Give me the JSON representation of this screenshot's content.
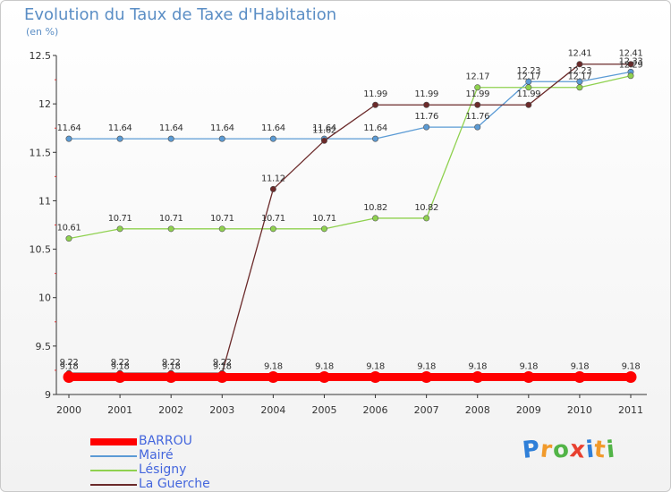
{
  "chart_data": {
    "type": "line",
    "title": "Evolution du Taux de Taxe d'Habitation",
    "subtitle": "(en %)",
    "x": [
      "2000",
      "2001",
      "2002",
      "2003",
      "2004",
      "2005",
      "2006",
      "2007",
      "2008",
      "2009",
      "2010",
      "2011"
    ],
    "ylim": [
      9,
      12.5
    ],
    "yticks": [
      "9",
      "9.5",
      "10",
      "10.5",
      "11",
      "11.5",
      "12",
      "12.5"
    ],
    "grid": false,
    "legend_position": "bottom-left",
    "series": [
      {
        "name": "BARROU",
        "color": "#ff0000",
        "values": [
          9.18,
          9.18,
          9.18,
          9.18,
          9.18,
          9.18,
          9.18,
          9.18,
          9.18,
          9.18,
          9.18,
          9.18
        ],
        "labels": [
          "9.18",
          "9.18",
          "9.18",
          "9.18",
          "9.18",
          "9.18",
          "9.18",
          "9.18",
          "9.18",
          "9.18",
          "9.18",
          "9.18"
        ]
      },
      {
        "name": "Mairé",
        "color": "#5b9bd5",
        "values": [
          11.64,
          11.64,
          11.64,
          11.64,
          11.64,
          11.64,
          11.64,
          11.76,
          11.76,
          12.23,
          12.23,
          12.33
        ],
        "labels": [
          "11.64",
          "11.64",
          "11.64",
          "11.64",
          "11.64",
          "11.64",
          "11.64",
          "11.76",
          "11.76",
          "12.23",
          "12.23",
          "12.33"
        ]
      },
      {
        "name": "Lésigny",
        "color": "#8fd14f",
        "values": [
          10.61,
          10.71,
          10.71,
          10.71,
          10.71,
          10.71,
          10.82,
          10.82,
          12.17,
          12.17,
          12.17,
          12.29
        ],
        "labels": [
          "10.61",
          "10.71",
          "10.71",
          "10.71",
          "10.71",
          "10.71",
          "10.82",
          "10.82",
          "12.17",
          "12.17",
          "12.17",
          "12.29"
        ]
      },
      {
        "name": "La Guerche",
        "color": "#6b2a2a",
        "values": [
          9.22,
          9.22,
          9.22,
          9.22,
          11.12,
          11.62,
          11.99,
          11.99,
          11.99,
          11.99,
          12.41,
          12.41
        ],
        "labels": [
          "9.22",
          "9.22",
          "9.22",
          "9.22",
          "11.12",
          "11.62",
          "11.99",
          "11.99",
          "11.99",
          "11.99",
          "12.41",
          "12.41"
        ]
      }
    ]
  },
  "brand": {
    "name": "Proxiti",
    "icon": "proxiti-logo",
    "colors": [
      "#2f7fd8",
      "#f19a2b",
      "#52b447",
      "#e8402f",
      "#2f7fd8",
      "#f19a2b",
      "#52b447"
    ]
  }
}
